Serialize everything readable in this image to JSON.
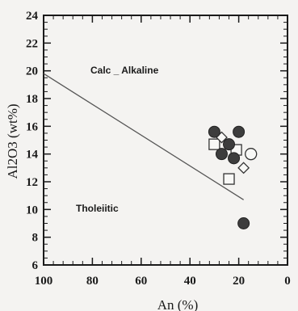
{
  "chart_data": {
    "type": "scatter",
    "title": "",
    "xlabel": "An (%)",
    "ylabel": "Al2O3 (wt%)",
    "xlim": [
      100,
      0
    ],
    "ylim": [
      6,
      24
    ],
    "x_reversed": true,
    "xticks": [
      "100",
      "80",
      "60",
      "40",
      "20",
      "0"
    ],
    "yticks": [
      "6",
      "8",
      "10",
      "12",
      "14",
      "16",
      "18",
      "20",
      "22",
      "24"
    ],
    "grid": false,
    "divider_line": {
      "x": [
        100,
        18
      ],
      "y": [
        19.8,
        10.7
      ]
    },
    "field_labels": [
      "Calc _ Alkaline",
      "Tholeiitic"
    ],
    "series": [
      {
        "marker": "filled-circle",
        "x": [
          30,
          20,
          24,
          27,
          22,
          18
        ],
        "y": [
          15.6,
          15.6,
          14.7,
          14.0,
          13.7,
          9.0
        ]
      },
      {
        "marker": "open-circle",
        "x": [
          15
        ],
        "y": [
          14.0
        ]
      },
      {
        "marker": "open-square",
        "x": [
          30,
          21,
          24
        ],
        "y": [
          14.7,
          14.3,
          12.2
        ]
      },
      {
        "marker": "open-diamond",
        "x": [
          27,
          18
        ],
        "y": [
          15.2,
          13.0
        ]
      }
    ]
  }
}
